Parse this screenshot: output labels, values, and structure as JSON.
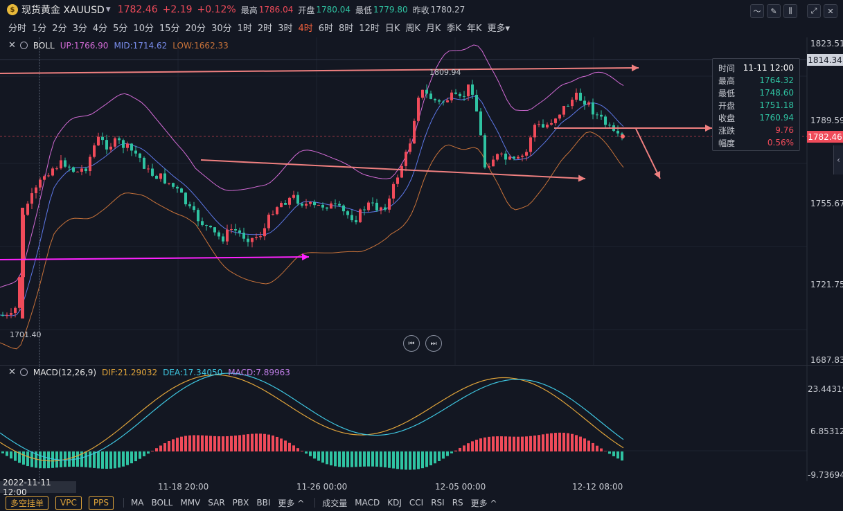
{
  "header": {
    "symbol_icon": "gold-coin-icon",
    "symbol_name": "现货黄金 XAUUSD",
    "price": "1782.46",
    "change": "+2.19",
    "change_pct": "+0.12%",
    "high_label": "最高",
    "high": "1786.04",
    "open_label": "开盘",
    "open": "1780.04",
    "low_label": "最低",
    "low": "1779.80",
    "prev_label": "昨收",
    "prev": "1780.27"
  },
  "periods": [
    "分时",
    "1分",
    "2分",
    "3分",
    "4分",
    "5分",
    "10分",
    "15分",
    "20分",
    "30分",
    "1时",
    "2时",
    "3时",
    "4时",
    "6时",
    "8时",
    "12时",
    "日K",
    "周K",
    "月K",
    "季K",
    "年K",
    "更多"
  ],
  "active_period": "4时",
  "boll": {
    "name": "BOLL",
    "up": "UP:1766.90",
    "mid": "MID:1714.62",
    "low": "LOW:1662.33"
  },
  "macd": {
    "name": "MACD(12,26,9)",
    "dif": "DIF:21.29032",
    "dea": "DEA:17.34050",
    "macd": "MACD:7.89963"
  },
  "price_axis": [
    "1823.51",
    "1789.59",
    "1755.67",
    "1721.75",
    "1687.83"
  ],
  "top_tag": "1814.34",
  "current_tag": "1782.46",
  "macd_axis": [
    "23.44319",
    "6.85312",
    "-9.73694"
  ],
  "annotations": {
    "max_label": "1809.94",
    "min_label": "1701.40"
  },
  "info_box": {
    "rows": [
      {
        "k": "时间",
        "v": "11-11 12:00"
      },
      {
        "k": "最高",
        "v": "1764.32"
      },
      {
        "k": "最低",
        "v": "1748.60"
      },
      {
        "k": "开盘",
        "v": "1751.18"
      },
      {
        "k": "收盘",
        "v": "1760.94"
      },
      {
        "k": "涨跌",
        "v": "9.76"
      },
      {
        "k": "幅度",
        "v": "0.56%"
      }
    ]
  },
  "time_axis": {
    "current": "2022-11-11 12:00",
    "ticks": [
      "11-18 20:00",
      "11-26 00:00",
      "12-05 00:00",
      "12-12 08:00"
    ]
  },
  "bottom": {
    "pills": [
      "多空挂单",
      "VPC",
      "PPS"
    ],
    "overlays": [
      "MA",
      "BOLL",
      "MMV",
      "SAR",
      "PBX",
      "BBI",
      "更多 ^"
    ],
    "indicators": [
      "成交量",
      "MACD",
      "KDJ",
      "CCI",
      "RSI",
      "RS",
      "更多 ^"
    ]
  },
  "colors": {
    "up": "#f04b5a",
    "down": "#2fc3a2",
    "boll_up": "#d36bd6",
    "boll_mid": "#5d78e8",
    "boll_low": "#c9733a",
    "trend": "#f08080",
    "magenta": "#ff22ff"
  }
}
